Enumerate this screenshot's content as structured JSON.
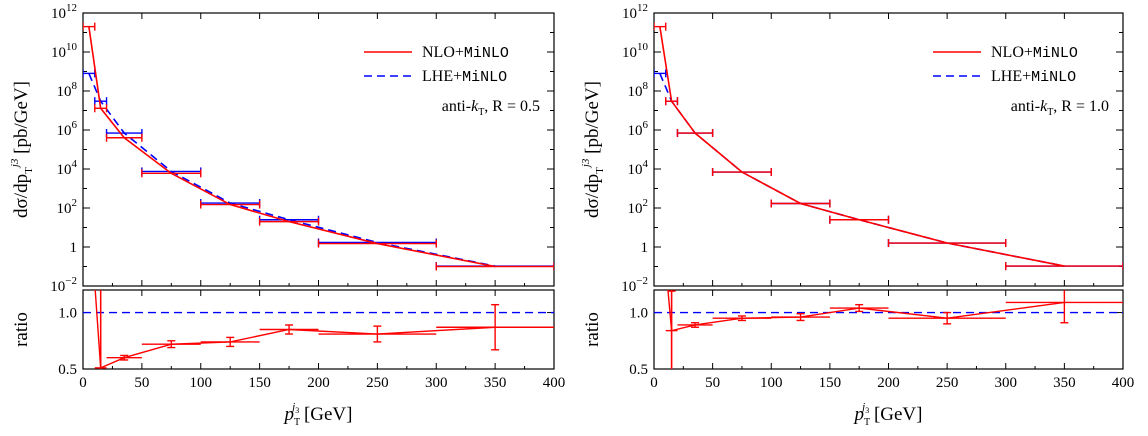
{
  "chart_data": [
    {
      "type": "line",
      "panel": "left",
      "annotation": {
        "prefix": "anti-",
        "k": "k",
        "k_sub": "T",
        "R": "R = 0.5"
      },
      "xlabel": {
        "p": "p",
        "sub": "T",
        "sup": "j",
        "sup2": "3",
        "unit": "[GeV]"
      },
      "ylabel": {
        "main": "dσ/dp",
        "sub": "T",
        "sup": "j3",
        "unit": "[pb/GeV]"
      },
      "ratio_ylabel": "ratio",
      "xlim": [
        0,
        400
      ],
      "ylim": [
        0.01,
        1000000000000.0
      ],
      "ylog": true,
      "ratio_ylim": [
        0.5,
        1.2
      ],
      "x_ticks": [
        "0",
        "50",
        "100",
        "150",
        "200",
        "250",
        "300",
        "350",
        "400"
      ],
      "y_ticks": [
        {
          "base": "10",
          "exp": "12"
        },
        {
          "base": "10",
          "exp": "10"
        },
        {
          "base": "10",
          "exp": "8"
        },
        {
          "base": "10",
          "exp": "6"
        },
        {
          "base": "10",
          "exp": "4"
        },
        {
          "base": "10",
          "exp": "2"
        },
        {
          "base": "1",
          "exp": ""
        },
        {
          "base": "10",
          "exp": "−2"
        }
      ],
      "ratio_ticks": [
        "0.5",
        "1.0"
      ],
      "bins": [
        [
          0,
          10
        ],
        [
          10,
          20
        ],
        [
          20,
          50
        ],
        [
          50,
          100
        ],
        [
          100,
          150
        ],
        [
          150,
          200
        ],
        [
          200,
          300
        ],
        [
          300,
          400
        ]
      ],
      "series": [
        {
          "name": "NLO+MiNLO",
          "name_a": "NLO+",
          "name_b": "MiNLO",
          "color": "#ff0000",
          "dash": "none",
          "values": [
            200000000000.0,
            13000000.0,
            400000.0,
            6000.0,
            150.0,
            20.0,
            1.5,
            0.1
          ],
          "ratio": [
            2.0,
            0.51,
            0.6,
            0.72,
            0.74,
            0.85,
            0.81,
            0.87
          ],
          "ratio_err": [
            0.0,
            0.7,
            0.02,
            0.03,
            0.04,
            0.04,
            0.07,
            0.2
          ]
        },
        {
          "name": "LHE+MiNLO",
          "name_a": "LHE+",
          "name_b": "MiNLO",
          "color": "#0000ff",
          "dash": "8,5",
          "values": [
            800000000.0,
            30000000.0,
            700000.0,
            7500.0,
            180.0,
            25.0,
            1.7,
            0.105
          ]
        }
      ]
    },
    {
      "type": "line",
      "panel": "right",
      "annotation": {
        "prefix": "anti-",
        "k": "k",
        "k_sub": "T",
        "R": "R = 1.0"
      },
      "xlabel": {
        "p": "p",
        "sub": "T",
        "sup": "j",
        "sup2": "3",
        "unit": "[GeV]"
      },
      "ylabel": {
        "main": "dσ/dp",
        "sub": "T",
        "sup": "j3",
        "unit": "[pb/GeV]"
      },
      "ratio_ylabel": "ratio",
      "xlim": [
        0,
        400
      ],
      "ylim": [
        0.01,
        1000000000000.0
      ],
      "ylog": true,
      "ratio_ylim": [
        0.5,
        1.2
      ],
      "x_ticks": [
        "0",
        "50",
        "100",
        "150",
        "200",
        "250",
        "300",
        "350",
        "400"
      ],
      "y_ticks": [
        {
          "base": "10",
          "exp": "12"
        },
        {
          "base": "10",
          "exp": "10"
        },
        {
          "base": "10",
          "exp": "8"
        },
        {
          "base": "10",
          "exp": "6"
        },
        {
          "base": "10",
          "exp": "4"
        },
        {
          "base": "10",
          "exp": "2"
        },
        {
          "base": "1",
          "exp": ""
        },
        {
          "base": "10",
          "exp": "−2"
        }
      ],
      "ratio_ticks": [
        "0.5",
        "1.0"
      ],
      "bins": [
        [
          0,
          10
        ],
        [
          10,
          20
        ],
        [
          20,
          50
        ],
        [
          50,
          100
        ],
        [
          100,
          150
        ],
        [
          150,
          200
        ],
        [
          200,
          300
        ],
        [
          300,
          400
        ]
      ],
      "series": [
        {
          "name": "NLO+MiNLO",
          "name_a": "NLO+",
          "name_b": "MiNLO",
          "color": "#ff0000",
          "dash": "none",
          "values": [
            200000000000.0,
            30000000.0,
            700000.0,
            7000.0,
            170.0,
            25.0,
            1.6,
            0.105
          ],
          "ratio": [
            2.0,
            0.84,
            0.89,
            0.95,
            0.96,
            1.04,
            0.95,
            1.09
          ],
          "ratio_err": [
            0.0,
            0.35,
            0.02,
            0.02,
            0.03,
            0.03,
            0.05,
            0.18
          ]
        },
        {
          "name": "LHE+MiNLO",
          "name_a": "LHE+",
          "name_b": "MiNLO",
          "color": "#0000ff",
          "dash": "8,5",
          "values": [
            800000000.0,
            30000000.0,
            700000.0,
            7000.0,
            170.0,
            25.0,
            1.6,
            0.105
          ]
        }
      ]
    }
  ]
}
